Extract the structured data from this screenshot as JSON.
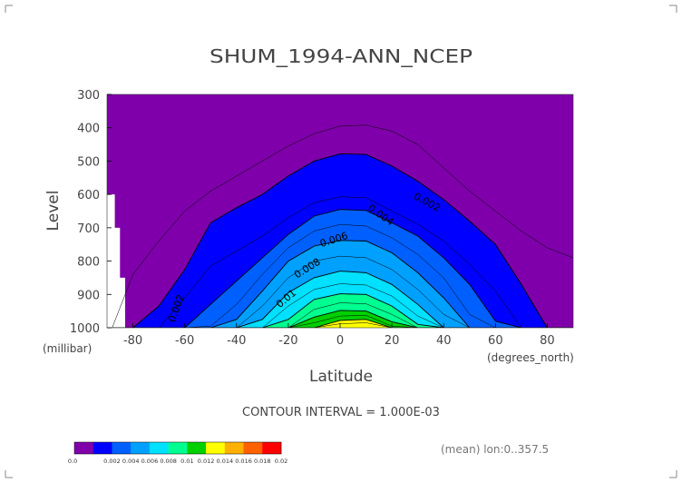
{
  "chart_data": {
    "type": "contour",
    "title": "SHUM_1994-ANN_NCEP",
    "xlabel": "Latitude",
    "xunit": "(degrees_north)",
    "ylabel": "Level",
    "yunit": "(millibar)",
    "xlim": [
      -90,
      90
    ],
    "ylim": [
      1000,
      300
    ],
    "xticks": [
      "-80",
      "-60",
      "-40",
      "-20",
      "0",
      "20",
      "40",
      "60",
      "80"
    ],
    "yticks": [
      "300",
      "400",
      "500",
      "600",
      "700",
      "800",
      "900",
      "1000"
    ],
    "contour_interval_text": "CONTOUR INTERVAL = 1.000E-03",
    "mean_text": "(mean) lon:0..357.5",
    "contour_labels": [
      "0.002",
      "0.004",
      "0.006",
      "0.008",
      "0.01",
      "0.002"
    ],
    "colorbar": {
      "levels": [
        "0.0",
        "0.002",
        "0.004",
        "0.006",
        "0.008",
        "0.01",
        "0.012",
        "0.014",
        "0.016",
        "0.018",
        "0.02"
      ],
      "colors": [
        "#7f00aa",
        "#0000ff",
        "#0060ff",
        "#00a0ff",
        "#00e0ff",
        "#00ff90",
        "#00d000",
        "#ffff00",
        "#ffb000",
        "#ff6000",
        "#ff0000"
      ]
    },
    "boundaries": {
      "lat": [
        -88,
        -80,
        -70,
        -60,
        -50,
        -40,
        -30,
        -20,
        -10,
        0,
        10,
        20,
        30,
        40,
        50,
        60,
        70,
        80,
        90
      ],
      "contours": [
        {
          "value": 0.001,
          "p": [
            1000,
            840,
            740,
            650,
            590,
            545,
            500,
            455,
            418,
            395,
            392,
            410,
            450,
            520,
            590,
            650,
            710,
            760,
            790
          ]
        },
        {
          "value": 0.002,
          "p": [
            1000,
            1000,
            935,
            825,
            685,
            640,
            600,
            545,
            500,
            478,
            480,
            515,
            560,
            615,
            680,
            750,
            870,
            1000,
            1000
          ]
        },
        {
          "value": 0.003,
          "p": [
            1000,
            1000,
            1000,
            910,
            815,
            770,
            725,
            670,
            625,
            607,
            610,
            650,
            690,
            740,
            810,
            890,
            1000,
            1000,
            1000
          ]
        },
        {
          "value": 0.004,
          "p": [
            1000,
            1000,
            1000,
            1000,
            930,
            860,
            790,
            720,
            665,
            645,
            648,
            685,
            725,
            790,
            870,
            980,
            1000,
            1000,
            1000
          ]
        },
        {
          "value": 0.005,
          "p": [
            1000,
            1000,
            1000,
            1000,
            995,
            930,
            840,
            760,
            710,
            690,
            695,
            730,
            780,
            850,
            960,
            1000,
            1000,
            1000,
            1000
          ]
        },
        {
          "value": 0.006,
          "p": [
            1000,
            1000,
            1000,
            1000,
            1000,
            975,
            890,
            800,
            755,
            738,
            740,
            775,
            835,
            910,
            1000,
            1000,
            1000,
            1000,
            1000
          ]
        },
        {
          "value": 0.007,
          "p": [
            1000,
            1000,
            1000,
            1000,
            1000,
            1000,
            935,
            850,
            800,
            785,
            790,
            825,
            885,
            960,
            1000,
            1000,
            1000,
            1000,
            1000
          ]
        },
        {
          "value": 0.008,
          "p": [
            1000,
            1000,
            1000,
            1000,
            1000,
            1000,
            975,
            895,
            850,
            830,
            835,
            870,
            930,
            1000,
            1000,
            1000,
            1000,
            1000,
            1000
          ]
        },
        {
          "value": 0.009,
          "p": [
            1000,
            1000,
            1000,
            1000,
            1000,
            1000,
            1000,
            935,
            885,
            868,
            872,
            905,
            965,
            1000,
            1000,
            1000,
            1000,
            1000,
            1000
          ]
        },
        {
          "value": 0.01,
          "p": [
            1000,
            1000,
            1000,
            1000,
            1000,
            1000,
            1000,
            975,
            915,
            898,
            900,
            935,
            990,
            1000,
            1000,
            1000,
            1000,
            1000,
            1000
          ]
        },
        {
          "value": 0.011,
          "p": [
            1000,
            1000,
            1000,
            1000,
            1000,
            1000,
            1000,
            1000,
            945,
            925,
            928,
            960,
            1000,
            1000,
            1000,
            1000,
            1000,
            1000,
            1000
          ]
        },
        {
          "value": 0.012,
          "p": [
            1000,
            1000,
            1000,
            1000,
            1000,
            1000,
            1000,
            1000,
            968,
            948,
            950,
            982,
            1000,
            1000,
            1000,
            1000,
            1000,
            1000,
            1000
          ]
        },
        {
          "value": 0.013,
          "p": [
            1000,
            1000,
            1000,
            1000,
            1000,
            1000,
            1000,
            1000,
            985,
            965,
            963,
            995,
            1000,
            1000,
            1000,
            1000,
            1000,
            1000,
            1000
          ]
        },
        {
          "value": 0.014,
          "p": [
            1000,
            1000,
            1000,
            1000,
            1000,
            1000,
            1000,
            1000,
            1000,
            978,
            975,
            1000,
            1000,
            1000,
            1000,
            1000,
            1000,
            1000,
            1000
          ]
        },
        {
          "value": 0.015,
          "p": [
            1000,
            1000,
            1000,
            1000,
            1000,
            1000,
            1000,
            1000,
            1000,
            988,
            985,
            1000,
            1000,
            1000,
            1000,
            1000,
            1000,
            1000,
            1000
          ]
        }
      ]
    },
    "terrain_mask": {
      "lat": [
        -90,
        -87,
        -87,
        -85,
        -85,
        -83,
        -83,
        -90
      ],
      "p": [
        600,
        600,
        700,
        700,
        850,
        850,
        1000,
        1000
      ]
    }
  }
}
